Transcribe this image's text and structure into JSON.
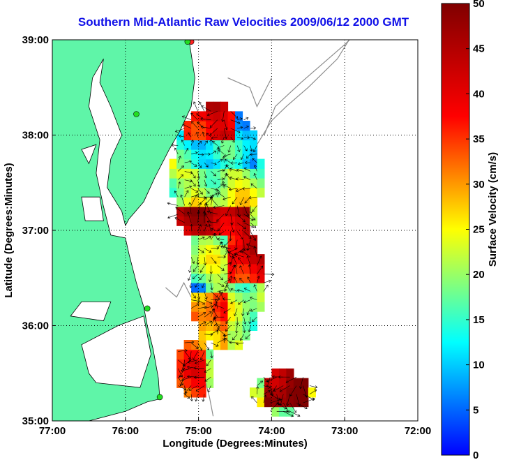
{
  "title": "Southern Mid-Atlantic Raw Velocities 2009/06/12 2000 GMT",
  "map": {
    "xlabel": "Longitude (Degrees:Minutes)",
    "ylabel": "Latitude (Degrees:Minutes)",
    "lon_range": [
      -77,
      -72
    ],
    "lat_range": [
      35,
      39
    ],
    "lon_ticks": [
      {
        "value": -77,
        "label": "77:00"
      },
      {
        "value": -76,
        "label": "76:00"
      },
      {
        "value": -75,
        "label": "75:00"
      },
      {
        "value": -74,
        "label": "74:00"
      },
      {
        "value": -73,
        "label": "73:00"
      },
      {
        "value": -72,
        "label": "72:00"
      }
    ],
    "lat_ticks": [
      {
        "value": 35,
        "label": "35:00"
      },
      {
        "value": 36,
        "label": "36:00"
      },
      {
        "value": 37,
        "label": "37:00"
      },
      {
        "value": 38,
        "label": "38:00"
      },
      {
        "value": 39,
        "label": "39:00"
      }
    ],
    "grid": "dotted",
    "land_color": "#5ff5a8",
    "water_color": "#ffffff",
    "bathymetry_color": "#8c8c8c",
    "arrow_color": "#000000",
    "station_color": "#22dd22",
    "station_red_color": "#ff2020"
  },
  "colorbar": {
    "label": "Surface Velocity (cm/s)",
    "min": 0,
    "max": 50,
    "ticks": [
      {
        "value": 0,
        "label": "0"
      },
      {
        "value": 5,
        "label": "5"
      },
      {
        "value": 10,
        "label": "10"
      },
      {
        "value": 15,
        "label": "15"
      },
      {
        "value": 20,
        "label": "20"
      },
      {
        "value": 25,
        "label": "25"
      },
      {
        "value": 30,
        "label": "30"
      },
      {
        "value": 35,
        "label": "35"
      },
      {
        "value": 40,
        "label": "40"
      },
      {
        "value": 45,
        "label": "45"
      },
      {
        "value": 50,
        "label": "50"
      }
    ],
    "colormap": [
      "#0000ff",
      "#00ffff",
      "#ffff00",
      "#ff0000",
      "#800000"
    ]
  },
  "chart_data": {
    "type": "heatmap",
    "title": "Southern Mid-Atlantic Raw Velocities 2009/06/12 2000 GMT",
    "xlabel": "Longitude (Degrees:Minutes)",
    "ylabel": "Latitude (Degrees:Minutes)",
    "xlim": [
      -77,
      -72
    ],
    "ylim": [
      35,
      39
    ],
    "value_label": "Surface Velocity (cm/s)",
    "value_range": [
      0,
      50
    ],
    "stations": [
      {
        "lon": -75.1,
        "lat": 38.98,
        "status": "red"
      },
      {
        "lon": -75.15,
        "lat": 38.98,
        "status": "green"
      },
      {
        "lon": -75.85,
        "lat": 38.22,
        "status": "green"
      },
      {
        "lon": -75.7,
        "lat": 36.18,
        "status": "green"
      },
      {
        "lon": -75.53,
        "lat": 35.25,
        "status": "green"
      }
    ],
    "velocity_regions": [
      {
        "name": "",
        "lon_range": [
          -75.3,
          -74.2
        ],
        "lat_range": [
          37.7,
          38.3
        ],
        "speed": 12
      },
      {
        "name": "",
        "lon_range": [
          -75.2,
          -74.5
        ],
        "lat_range": [
          38.0,
          38.35
        ],
        "speed": 40
      },
      {
        "name": "",
        "lon_range": [
          -75.1,
          -74.1
        ],
        "lat_range": [
          37.3,
          37.7
        ],
        "speed": 22
      },
      {
        "name": "",
        "lon_range": [
          -75.5,
          -74.3
        ],
        "lat_range": [
          37.0,
          37.3
        ],
        "speed": 44
      },
      {
        "name": "",
        "lon_range": [
          -74.6,
          -74.0
        ],
        "lat_range": [
          36.5,
          37.0
        ],
        "speed": 40
      },
      {
        "name": "",
        "lon_range": [
          -75.5,
          -74.9
        ],
        "lat_range": [
          36.1,
          36.5
        ],
        "speed": 12
      },
      {
        "name": "",
        "lon_range": [
          -75.2,
          -74.6
        ],
        "lat_range": [
          35.8,
          36.4
        ],
        "speed": 32
      },
      {
        "name": "",
        "lon_range": [
          -75.3,
          -74.9
        ],
        "lat_range": [
          35.3,
          35.8
        ],
        "speed": 35
      },
      {
        "name": "",
        "lon_range": [
          -74.1,
          -73.5
        ],
        "lat_range": [
          35.1,
          35.5
        ],
        "speed": 48
      }
    ]
  }
}
